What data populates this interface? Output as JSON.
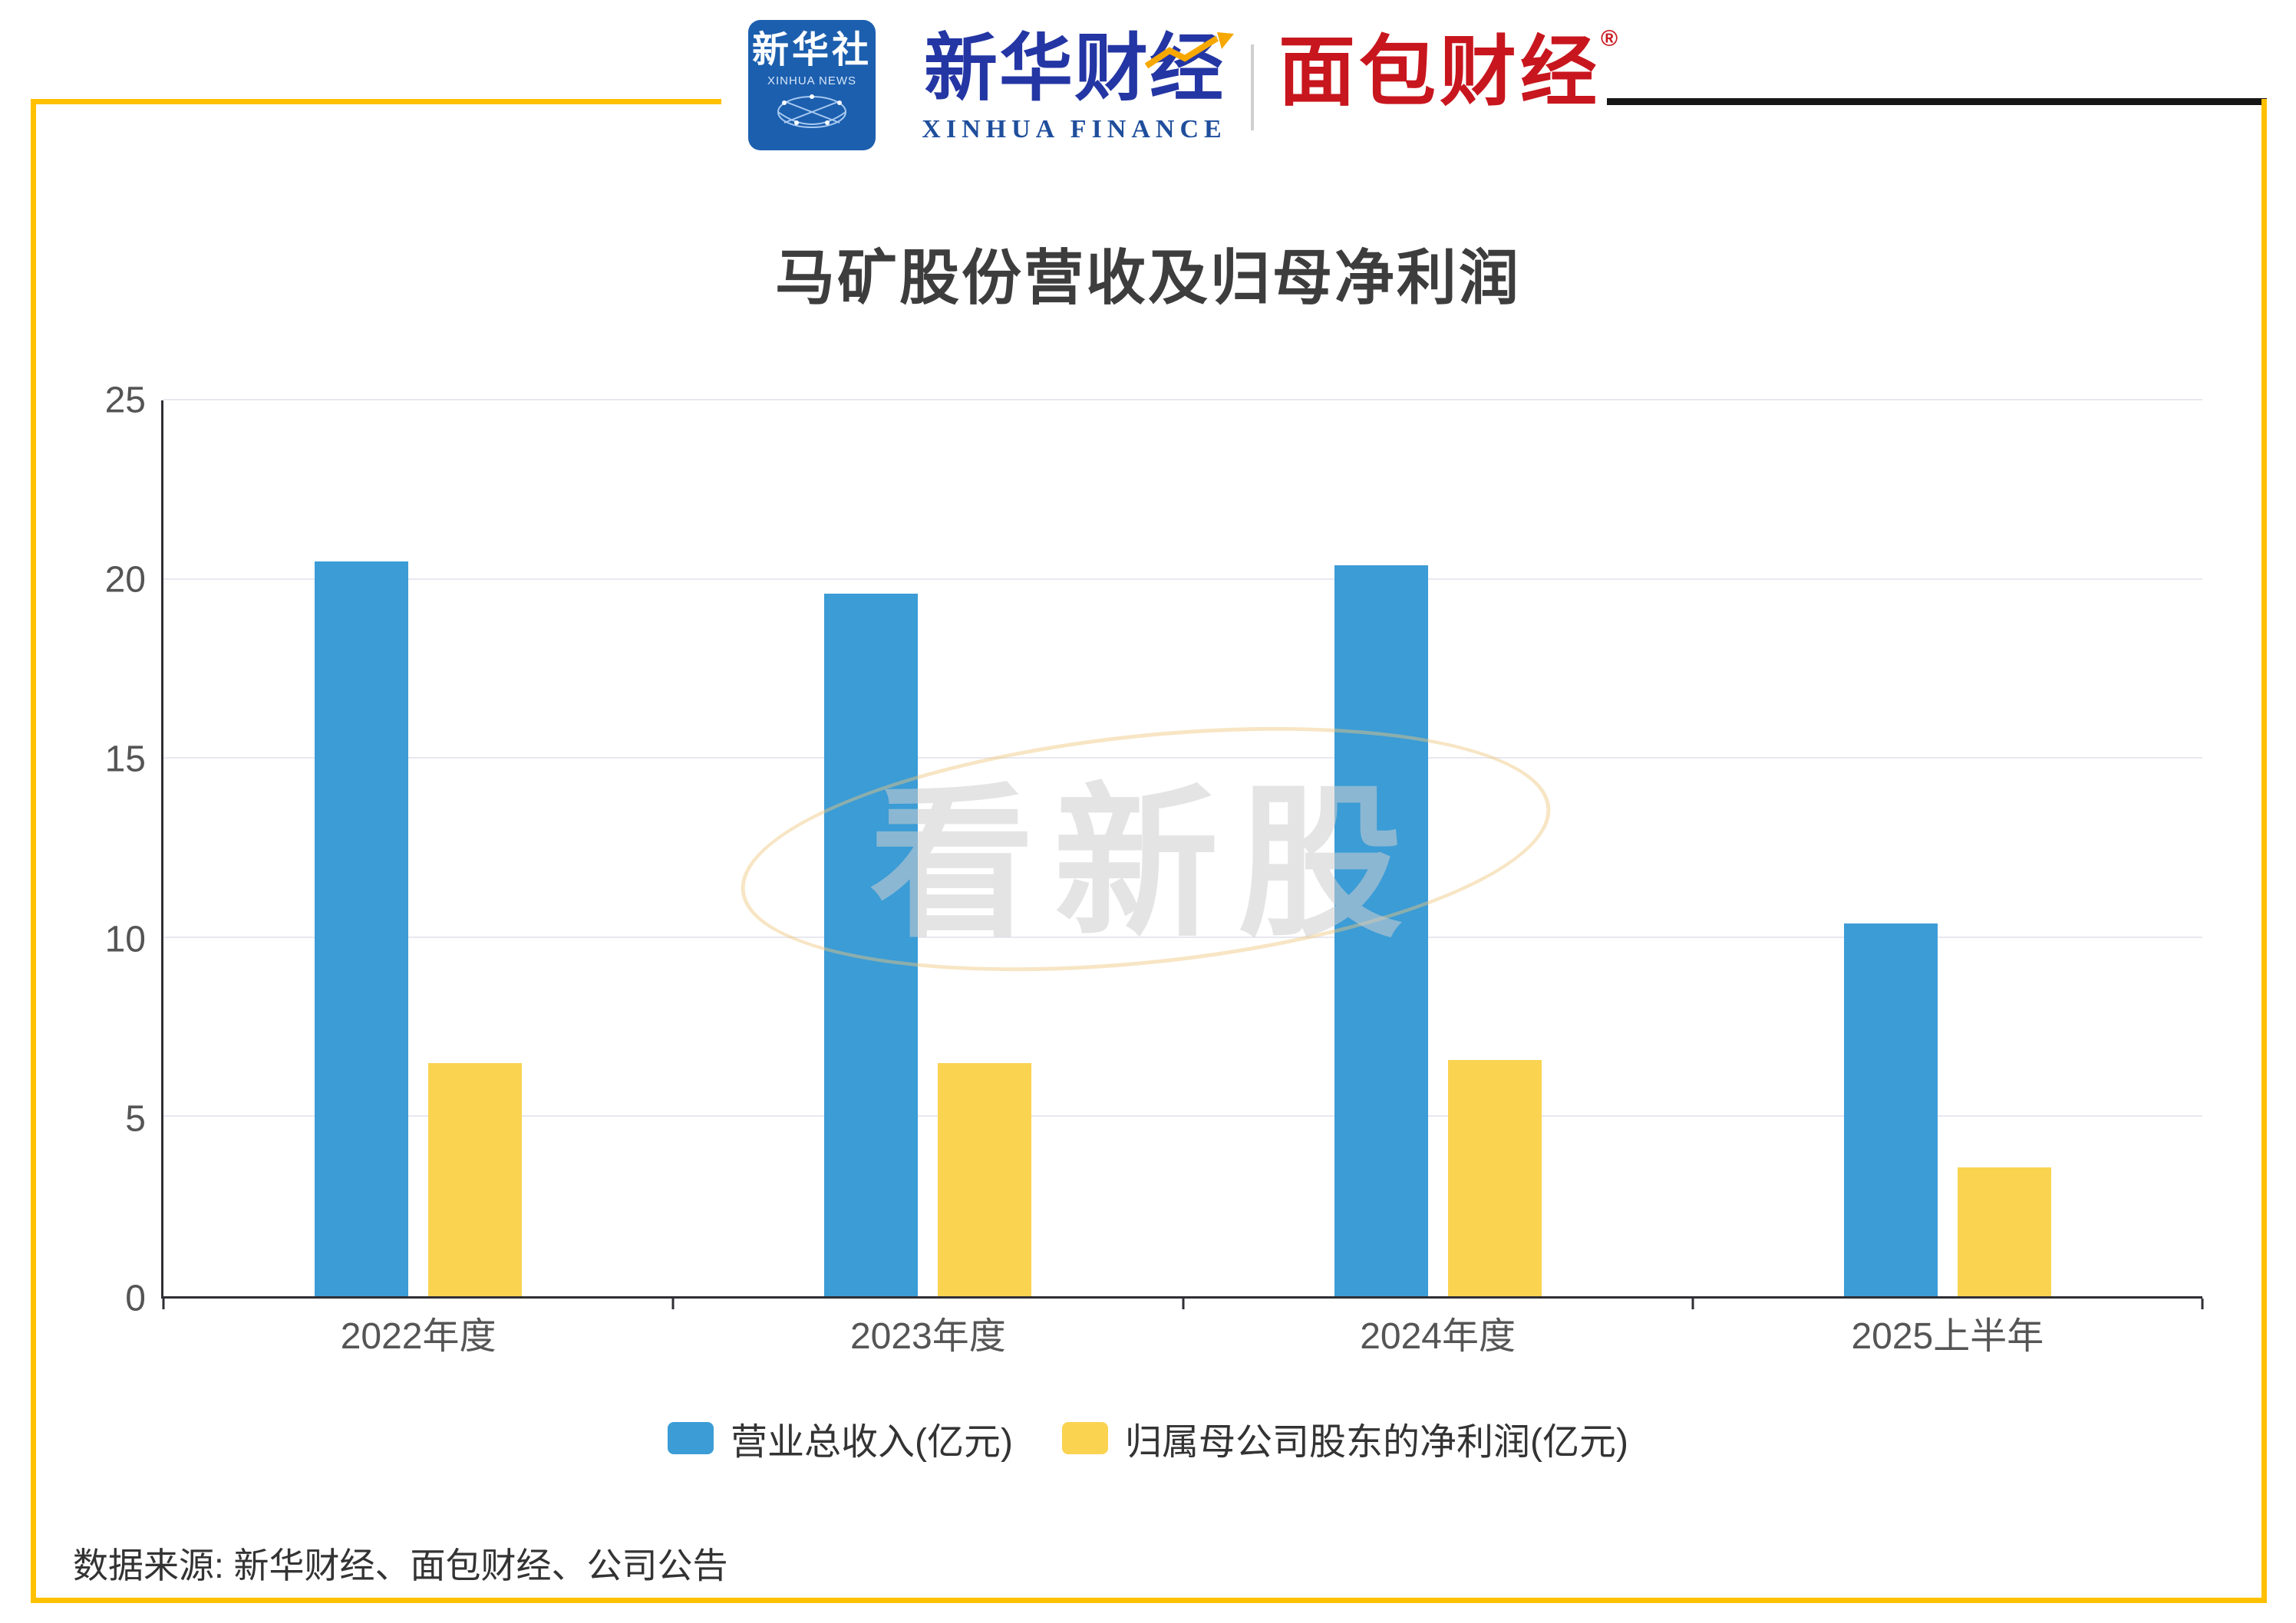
{
  "header": {
    "xinhua_news_logo": {
      "cn": "新华社",
      "en": "XINHUA NEWS"
    },
    "xinhua_finance_logo": {
      "cn": "新华财经",
      "en": "XINHUA FINANCE"
    },
    "mianbao_logo": {
      "cn": "面包财经",
      "reg_mark": "®"
    }
  },
  "watermark": "看新股",
  "source_text": "数据来源: 新华财经、面包财经、公司公告",
  "chart_data": {
    "type": "bar",
    "title": "马矿股份营收及归母净利润",
    "categories": [
      "2022年度",
      "2023年度",
      "2024年度",
      "2025上半年"
    ],
    "series": [
      {
        "name": "营业总收入(亿元)",
        "color": "#3B9CD6",
        "values": [
          20.5,
          19.6,
          20.4,
          10.4
        ]
      },
      {
        "name": "归属母公司股东的净利润(亿元)",
        "color": "#FAD351",
        "values": [
          6.5,
          6.5,
          6.6,
          3.6
        ]
      }
    ],
    "ylim": [
      0,
      25
    ],
    "yticks": [
      0,
      5,
      10,
      15,
      20,
      25
    ],
    "grid": true,
    "legend_position": "bottom"
  },
  "colors": {
    "frame_yellow": "#FFC000",
    "bar_blue": "#3B9CD6",
    "bar_yellow": "#FAD351",
    "axis": "#2F2F35",
    "brand_blue": "#1F4E9C",
    "brand_red": "#C8161E"
  }
}
